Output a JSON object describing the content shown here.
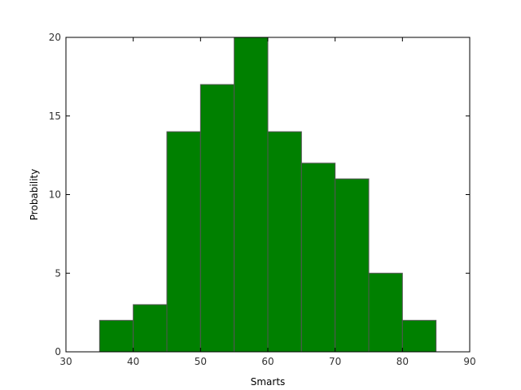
{
  "chart_data": {
    "type": "bar",
    "title": "",
    "xlabel": "Smarts",
    "ylabel": "Probability",
    "xlim": [
      30,
      90
    ],
    "ylim": [
      0,
      20
    ],
    "xticks": [
      30,
      40,
      50,
      60,
      70,
      80,
      90
    ],
    "yticks": [
      0,
      5,
      10,
      15,
      20
    ],
    "bar_color": "#008000",
    "edge_color": "#555555",
    "grid": false,
    "bins": [
      {
        "x0": 35.0,
        "x1": 40.0,
        "value": 2
      },
      {
        "x0": 40.0,
        "x1": 45.0,
        "value": 3
      },
      {
        "x0": 45.0,
        "x1": 50.0,
        "value": 14
      },
      {
        "x0": 50.0,
        "x1": 55.0,
        "value": 17
      },
      {
        "x0": 55.0,
        "x1": 60.0,
        "value": 20
      },
      {
        "x0": 60.0,
        "x1": 65.0,
        "value": 14
      },
      {
        "x0": 65.0,
        "x1": 70.0,
        "value": 12
      },
      {
        "x0": 70.0,
        "x1": 75.0,
        "value": 11
      },
      {
        "x0": 75.0,
        "x1": 80.0,
        "value": 5
      },
      {
        "x0": 80.0,
        "x1": 85.0,
        "value": 2
      }
    ]
  }
}
